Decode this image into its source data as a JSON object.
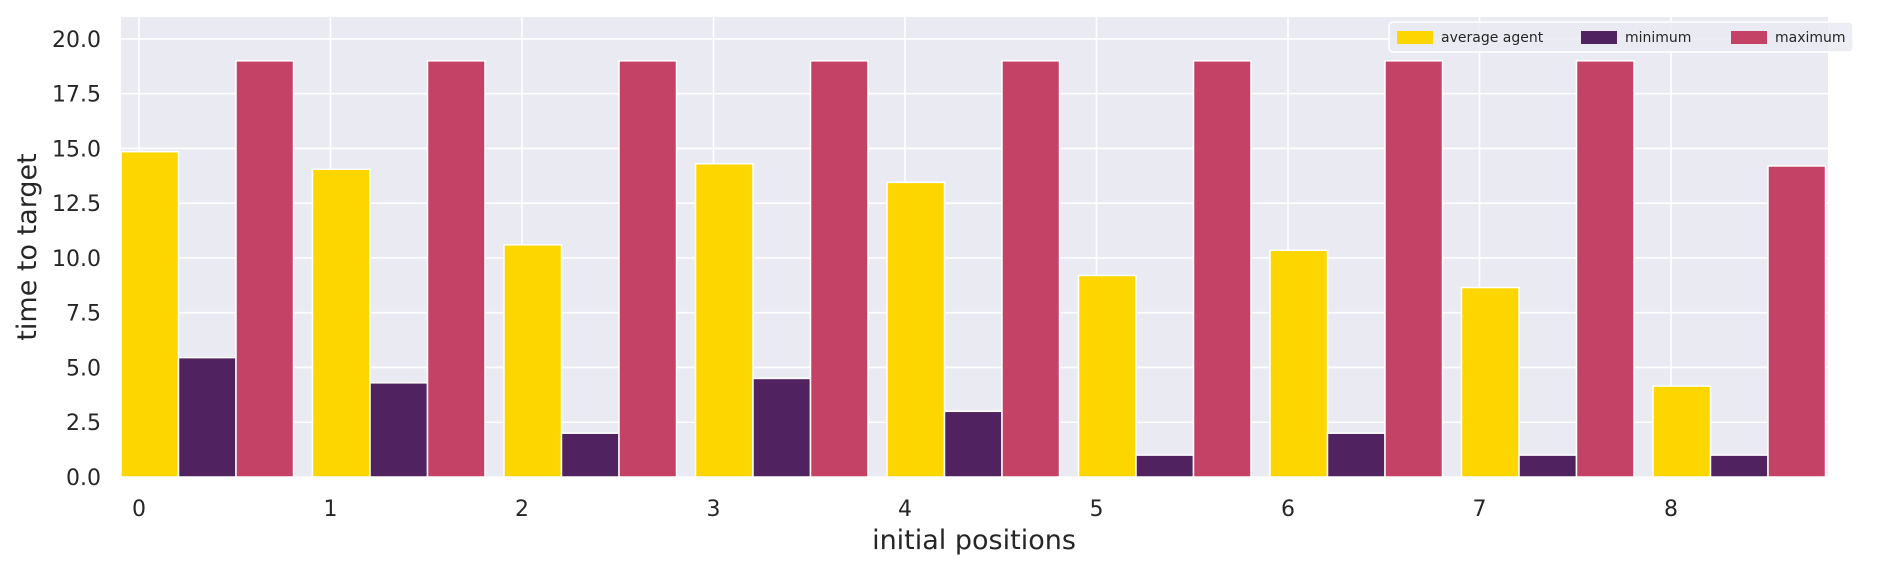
{
  "chart_data": {
    "type": "bar",
    "title": "",
    "xlabel": "initial positions",
    "ylabel": "time to target",
    "categories": [
      "0",
      "1",
      "2",
      "3",
      "4",
      "5",
      "6",
      "7",
      "8"
    ],
    "series": [
      {
        "name": "average agent",
        "color": "#FDD600",
        "values": [
          14.85,
          14.05,
          10.6,
          14.3,
          13.45,
          9.2,
          10.35,
          8.65,
          4.15
        ]
      },
      {
        "name": "minimum",
        "color": "#512260",
        "values": [
          5.45,
          4.3,
          2.0,
          4.5,
          3.0,
          1.0,
          2.0,
          1.0,
          1.0
        ]
      },
      {
        "name": "maximum",
        "color": "#C44265",
        "values": [
          19.0,
          19.0,
          19.0,
          19.0,
          19.0,
          19.0,
          19.0,
          19.0,
          14.2
        ]
      }
    ],
    "ylim": [
      0,
      21
    ],
    "yticks": [
      "0.0",
      "2.5",
      "5.0",
      "7.5",
      "10.0",
      "12.5",
      "15.0",
      "17.5",
      "20.0"
    ],
    "grid": true,
    "legend_position": "top-right",
    "background_color": "#EAEAF2",
    "grid_color": "#FFFFFF"
  }
}
